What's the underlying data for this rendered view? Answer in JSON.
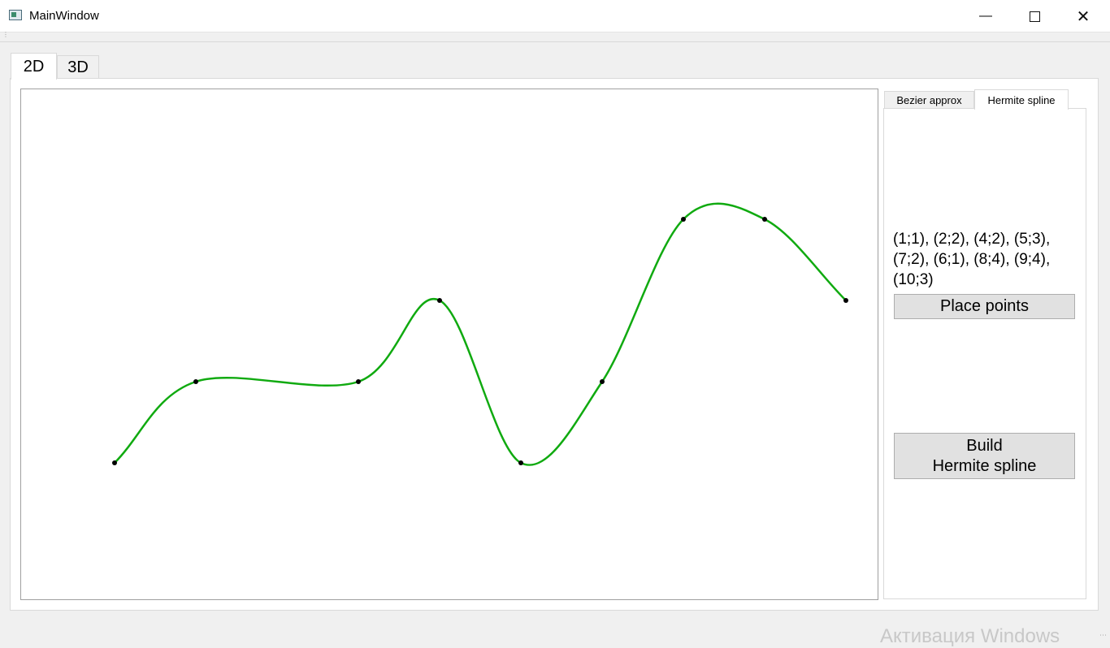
{
  "window": {
    "title": "MainWindow",
    "minimize_icon": "minimize-icon",
    "maximize_icon": "maximize-icon",
    "close_icon": "close-icon"
  },
  "main_tabs": [
    {
      "label": "2D",
      "active": true
    },
    {
      "label": "3D",
      "active": false
    }
  ],
  "side_tabs": [
    {
      "label": "Bezier approx",
      "active": false
    },
    {
      "label": "Hermite spline",
      "active": true
    }
  ],
  "hermite_panel": {
    "points_text": "(1;1), (2;2), (4;2), (5;3), (7;2), (6;1), (8;4), (9;4), (10;3)",
    "place_points_label": "Place points",
    "build_label": "Build\nHermite spline"
  },
  "plot": {
    "curve_color": "#10aa10",
    "point_color": "#000000",
    "points": [
      {
        "x": 1,
        "y": 1
      },
      {
        "x": 2,
        "y": 2
      },
      {
        "x": 4,
        "y": 2
      },
      {
        "x": 5,
        "y": 3
      },
      {
        "x": 6,
        "y": 1
      },
      {
        "x": 7,
        "y": 2
      },
      {
        "x": 8,
        "y": 4
      },
      {
        "x": 9,
        "y": 4
      },
      {
        "x": 10,
        "y": 3
      }
    ]
  },
  "watermark": "Активация Windows"
}
